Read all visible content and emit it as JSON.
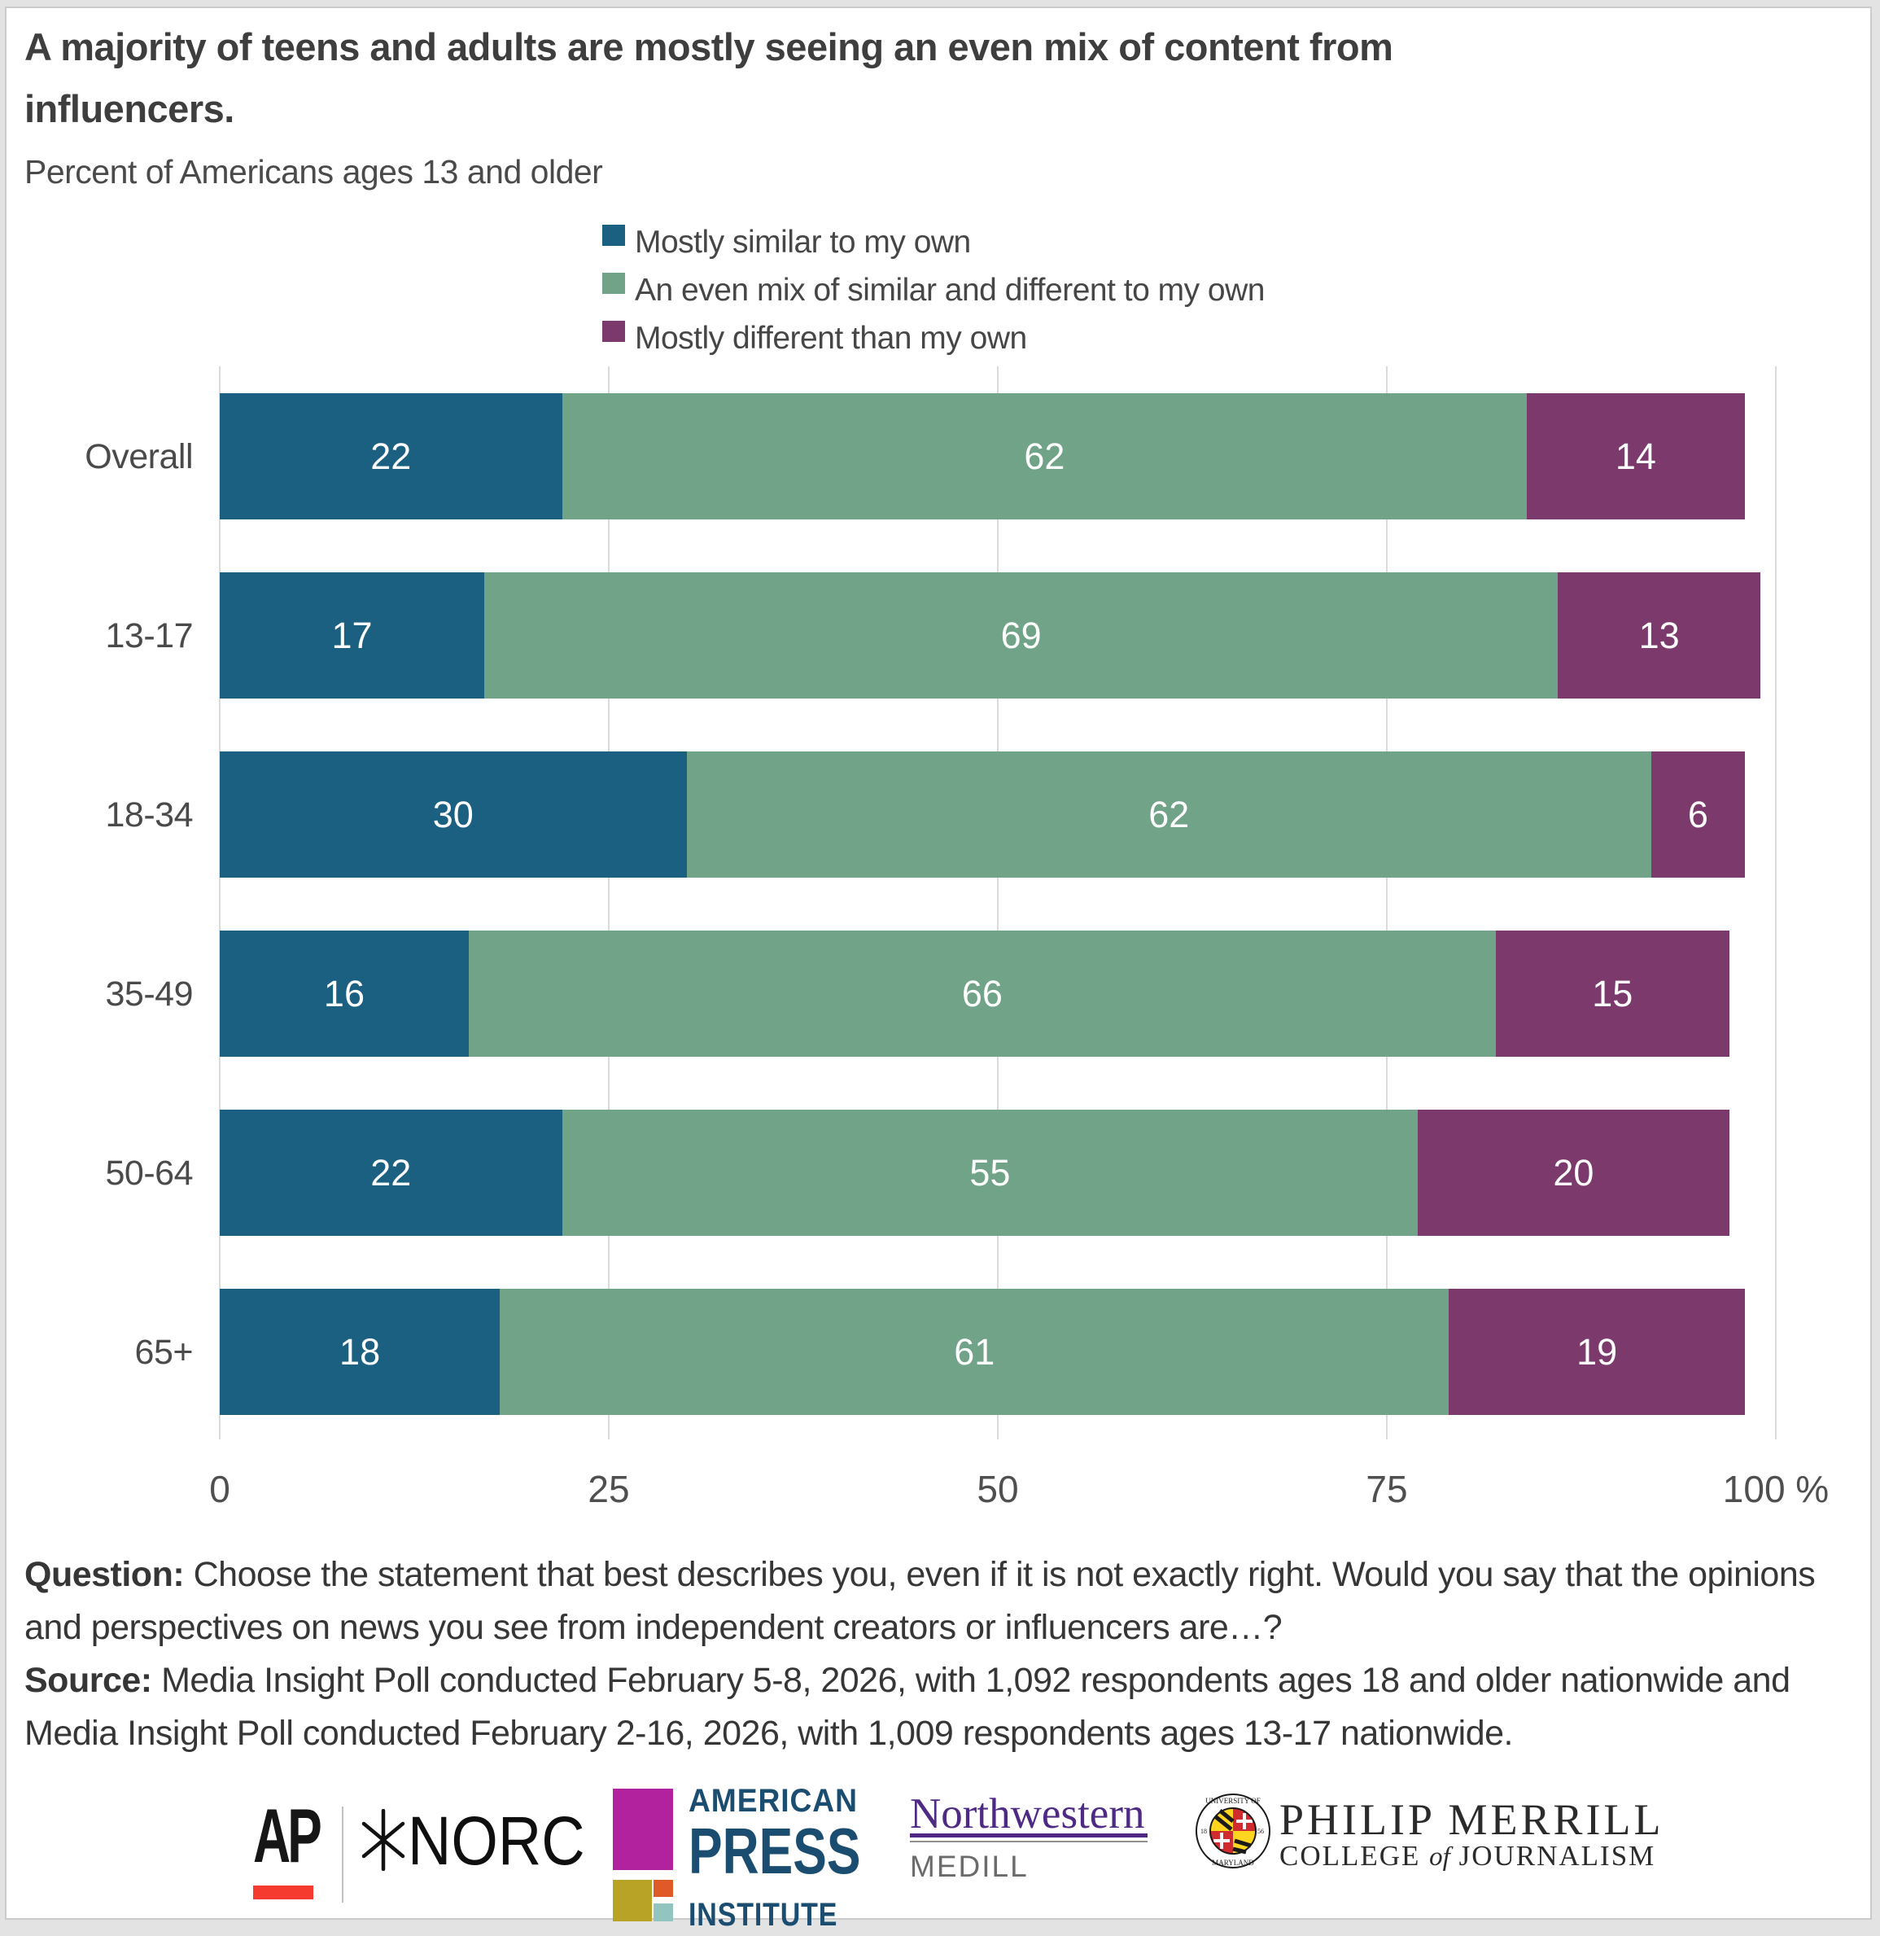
{
  "page": {
    "title": "A majority of teens and adults are mostly seeing an even mix of content from influencers.",
    "subtitle": "Percent of Americans ages 13 and older"
  },
  "legend": [
    {
      "label": "Mostly similar to my own",
      "color": "#1c6081"
    },
    {
      "label": "An even mix of similar and different to my own",
      "color": "#70a388"
    },
    {
      "label": "Mostly different than my own",
      "color": "#7c3a6c"
    }
  ],
  "chart_data": {
    "type": "bar",
    "orientation": "horizontal-stacked",
    "title": "A majority of teens and adults are mostly seeing an even mix of content from influencers.",
    "subtitle": "Percent of Americans ages 13 and older",
    "categories": [
      "Overall",
      "13-17",
      "18-34",
      "35-49",
      "50-64",
      "65+"
    ],
    "series": [
      {
        "name": "Mostly similar to my own",
        "color": "#1c6081",
        "values": [
          22,
          17,
          30,
          16,
          22,
          18
        ]
      },
      {
        "name": "An even mix of similar and different to my own",
        "color": "#70a388",
        "values": [
          62,
          69,
          62,
          66,
          55,
          61
        ]
      },
      {
        "name": "Mostly different than my own",
        "color": "#7c3a6c",
        "values": [
          14,
          13,
          6,
          15,
          20,
          19
        ]
      }
    ],
    "xlim": [
      0,
      100
    ],
    "x_ticks": [
      {
        "value": 0,
        "label": "0"
      },
      {
        "value": 25,
        "label": "25"
      },
      {
        "value": 50,
        "label": "50"
      },
      {
        "value": 75,
        "label": "75"
      },
      {
        "value": 100,
        "label": "100 %"
      }
    ],
    "grid": true,
    "legend_position": "top",
    "value_labels": "inside-white"
  },
  "footnote": {
    "question_label": "Question:",
    "question_text": "Choose the statement that best describes you, even if it is not exactly right. Would you say that the opinions and perspectives on news you see from independent creators or influencers are…?",
    "source_label": "Source:",
    "source_text": "Media Insight Poll conducted February 5-8, 2026, with 1,092 respondents ages 18 and older nationwide and Media Insight Poll conducted February 2-16, 2026, with 1,009 respondents ages 13-17 nationwide."
  },
  "logos": {
    "ap": "AP",
    "norc": "NORC",
    "api_line1": "AMERICAN",
    "api_line2": "PRESS",
    "api_line3": "INSTITUTE",
    "northwestern": "Northwestern",
    "medill": "MEDILL",
    "merrill_line1": "PHILIP MERRILL",
    "merrill_college": "COLLEGE",
    "merrill_of": "of",
    "merrill_journalism": "JOURNALISM"
  },
  "colors": {
    "ap_red": "#f53b30",
    "api_navy": "#1b4d70",
    "api_magenta": "#b2219e",
    "api_gold": "#b8a326",
    "api_orange": "#e05a28",
    "api_teal": "#92c4c0",
    "northwestern_purple": "#4e2a84",
    "gridline": "#dbdbdb"
  }
}
